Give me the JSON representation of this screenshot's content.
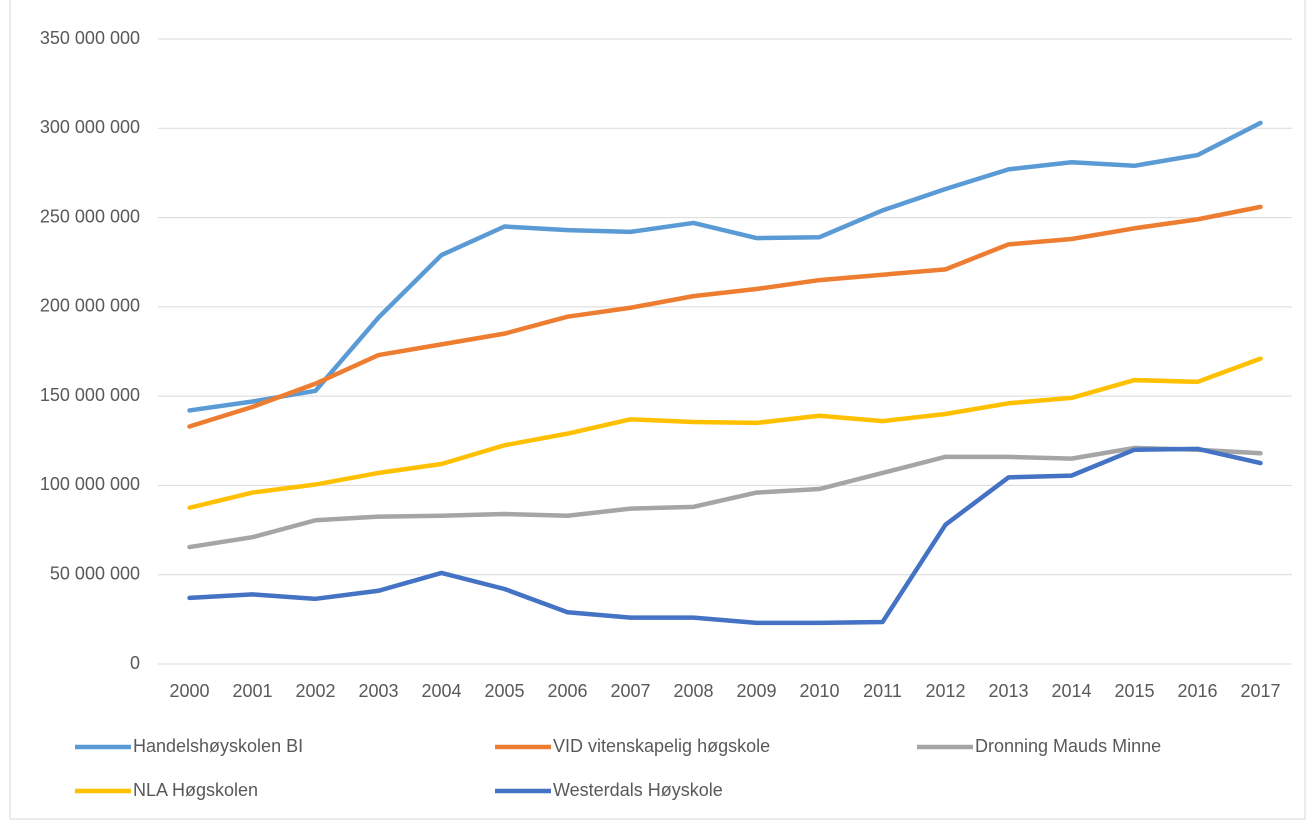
{
  "chart_data": {
    "type": "line",
    "categories": [
      "2000",
      "2001",
      "2002",
      "2003",
      "2004",
      "2005",
      "2006",
      "2007",
      "2008",
      "2009",
      "2010",
      "2011",
      "2012",
      "2013",
      "2014",
      "2015",
      "2016",
      "2017"
    ],
    "series": [
      {
        "name": "Handelshøyskolen BI",
        "color": "#5b9bd5",
        "values": [
          142000000,
          147000000,
          153000000,
          194000000,
          229000000,
          245000000,
          243000000,
          242000000,
          247000000,
          238500000,
          239000000,
          254000000,
          266000000,
          277000000,
          281000000,
          279000000,
          285000000,
          303000000
        ]
      },
      {
        "name": "VID vitenskapelig høgskole",
        "color": "#ed7d31",
        "values": [
          133000000,
          144000000,
          157000000,
          173000000,
          179000000,
          185000000,
          194500000,
          199500000,
          206000000,
          210000000,
          215000000,
          218000000,
          221000000,
          235000000,
          238000000,
          244000000,
          249000000,
          256000000
        ]
      },
      {
        "name": "Dronning Mauds Minne",
        "color": "#a5a5a5",
        "values": [
          65500000,
          71000000,
          80500000,
          82500000,
          83000000,
          84000000,
          83000000,
          87000000,
          88000000,
          96000000,
          98000000,
          107000000,
          116000000,
          116000000,
          115000000,
          121000000,
          120000000,
          118000000
        ]
      },
      {
        "name": "NLA Høgskolen",
        "color": "#ffc000",
        "values": [
          87500000,
          96000000,
          100500000,
          107000000,
          112000000,
          122500000,
          129000000,
          137000000,
          135500000,
          135000000,
          139000000,
          136000000,
          140000000,
          146000000,
          149000000,
          159000000,
          158000000,
          171000000
        ]
      },
      {
        "name": "Westerdals Høyskole",
        "color": "#4472c4",
        "values": [
          37000000,
          39000000,
          36500000,
          41000000,
          51000000,
          42000000,
          29000000,
          26000000,
          26000000,
          23000000,
          23000000,
          23500000,
          78000000,
          104500000,
          105500000,
          120000000,
          120500000,
          112500000
        ]
      }
    ],
    "ylim": [
      0,
      350000000
    ],
    "yticks": [
      0,
      {
        "value": 50000000,
        "label": "50 000 000"
      },
      {
        "value": 100000000,
        "label": "100 000 000"
      },
      {
        "value": 150000000,
        "label": "150 000 000"
      },
      {
        "value": 200000000,
        "label": "200 000 000"
      },
      {
        "value": 250000000,
        "label": "250 000 000"
      },
      {
        "value": 300000000,
        "label": "300 000 000"
      },
      {
        "value": 350000000,
        "label": "350 000 000"
      }
    ],
    "grid": true,
    "legend": "bottom"
  }
}
